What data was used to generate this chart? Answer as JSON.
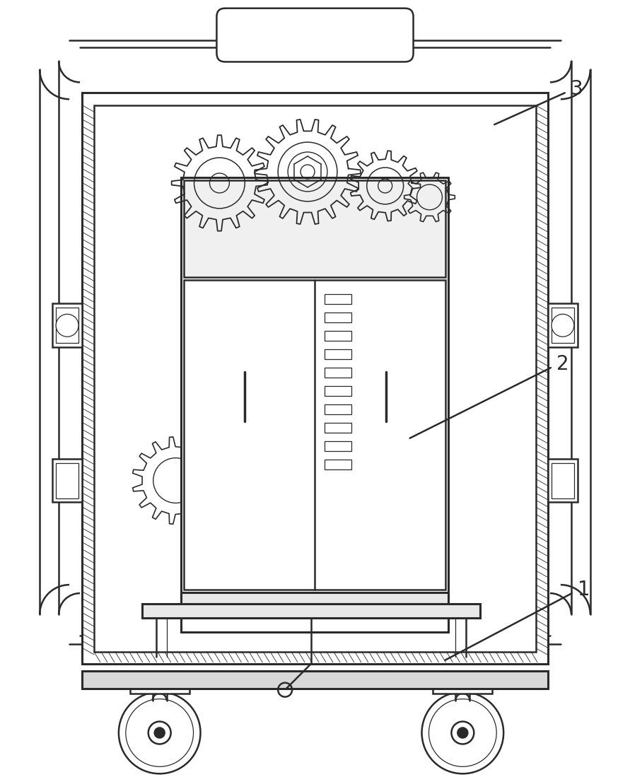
{
  "bg_color": "#ffffff",
  "line_color": "#2a2a2a",
  "lw_main": 1.8,
  "lw_thin": 0.9,
  "lw_thick": 2.2,
  "label_fontsize": 20,
  "figsize": [
    8.91,
    10.99
  ],
  "dpi": 100
}
